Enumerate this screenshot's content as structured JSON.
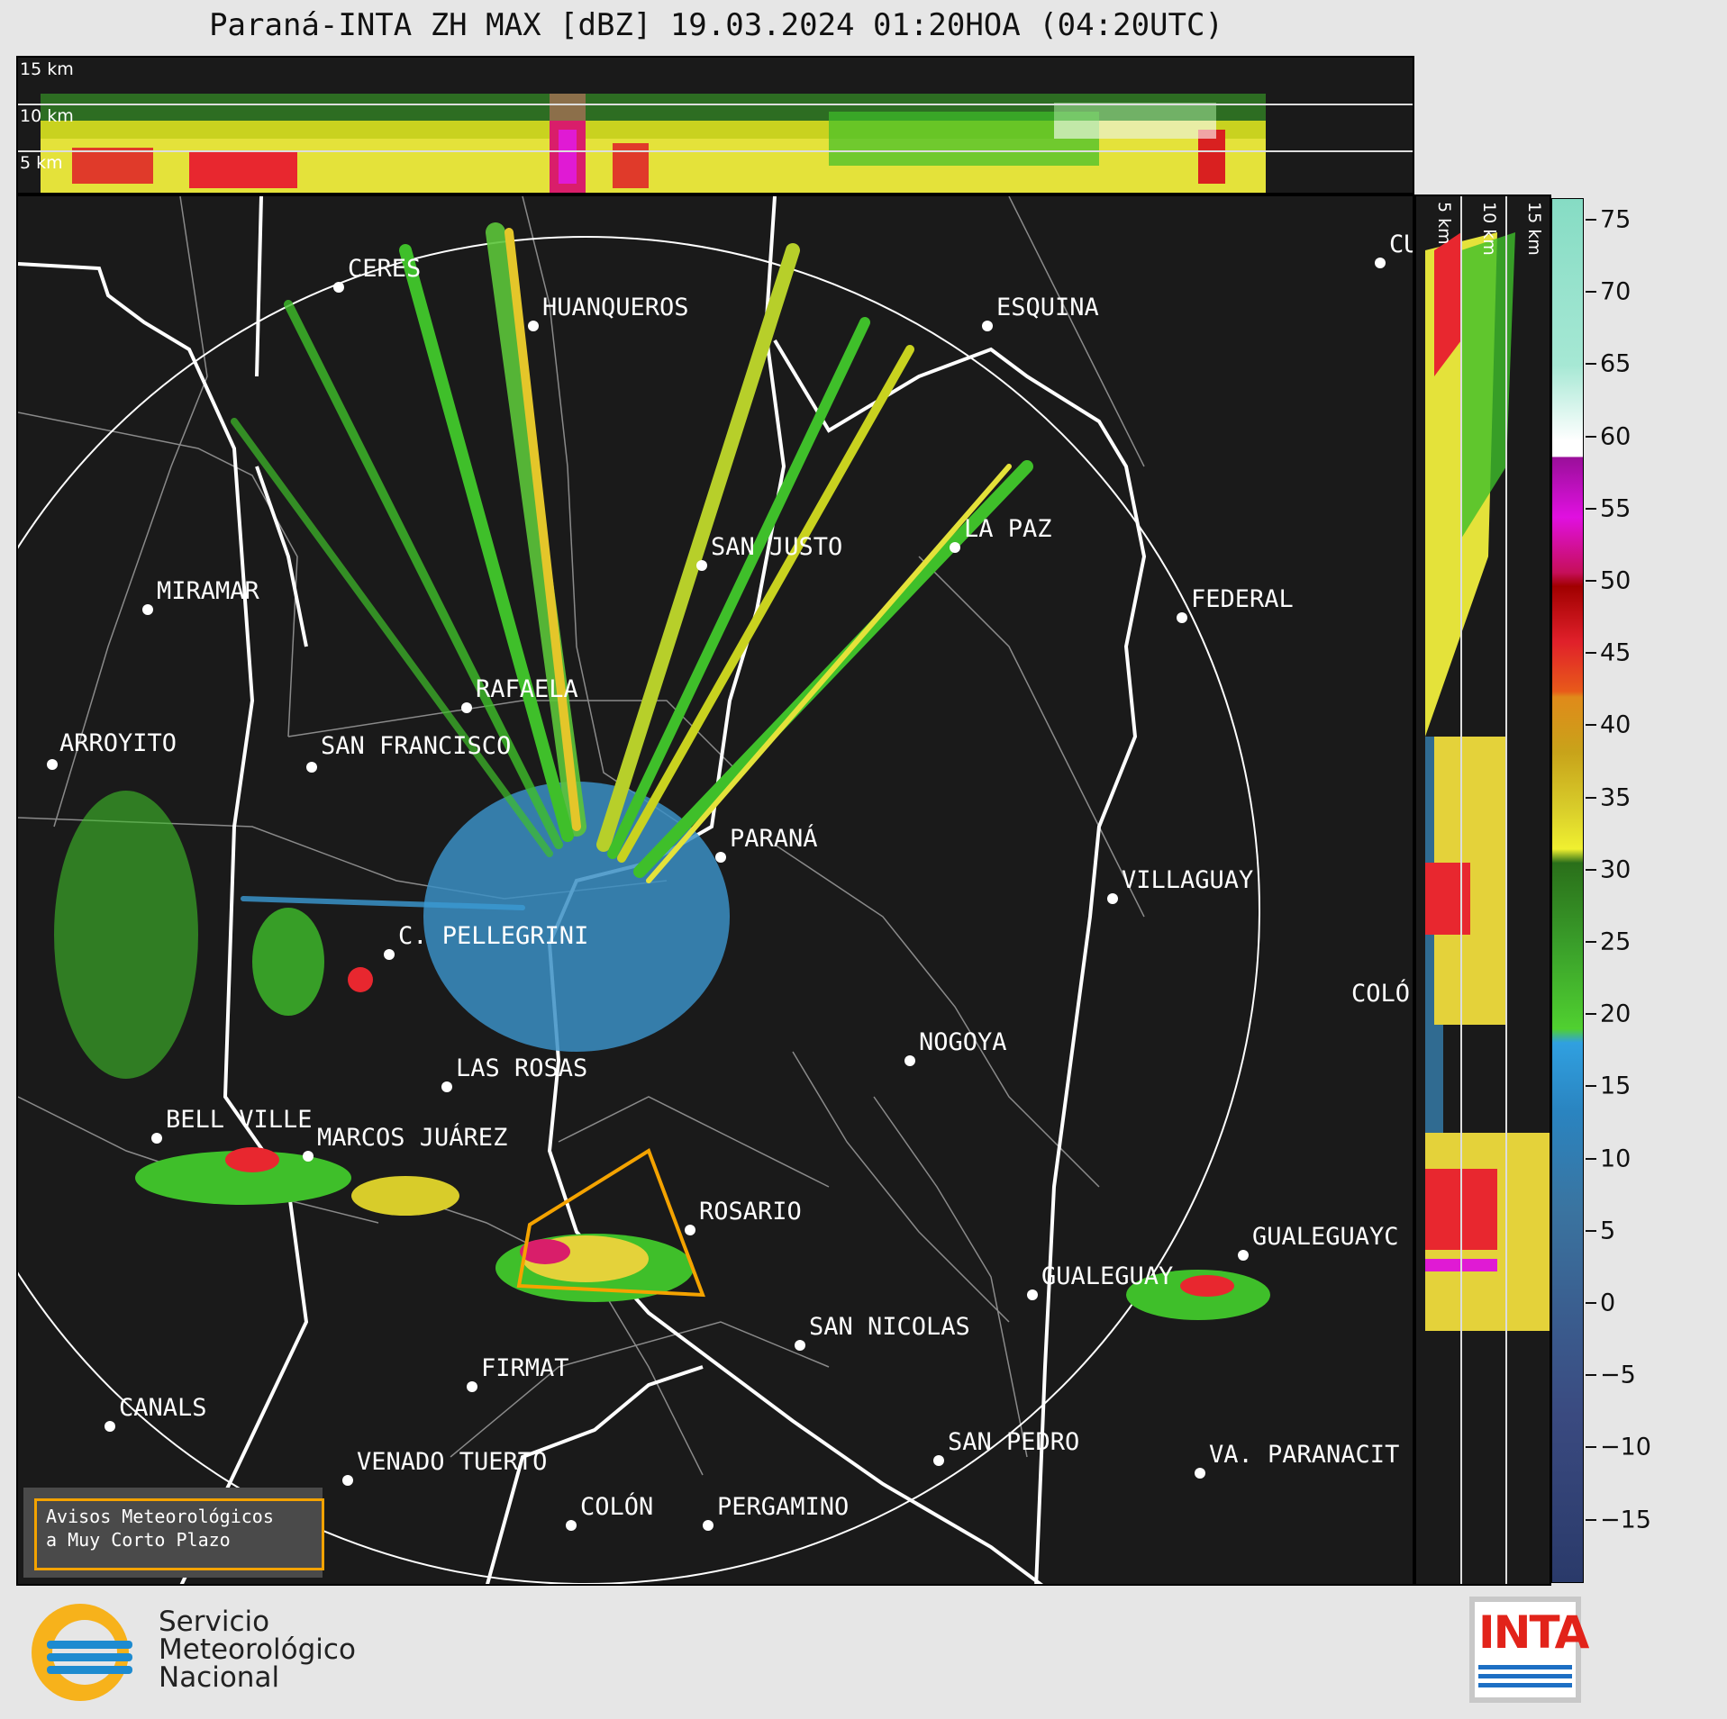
{
  "title": "Paraná-INTA ZH MAX [dBZ] 19.03.2024 01:20HOA (04:20UTC)",
  "top_panel": {
    "height_labels": [
      "15 km",
      "10 km",
      "5 km"
    ]
  },
  "side_panel": {
    "height_labels": [
      "5 km",
      "10 km",
      "15 km"
    ]
  },
  "colorbar": {
    "ticks": [
      "75",
      "70",
      "65",
      "60",
      "55",
      "50",
      "45",
      "40",
      "35",
      "30",
      "25",
      "20",
      "15",
      "10",
      "5",
      "0",
      "−5",
      "−10",
      "−15"
    ]
  },
  "cities": [
    {
      "name": "CERES",
      "id": "ceres"
    },
    {
      "name": "HUANQUEROS",
      "id": "huanqueros"
    },
    {
      "name": "ESQUINA",
      "id": "esquina"
    },
    {
      "name": "CU",
      "id": "cu"
    },
    {
      "name": "MIRAMAR",
      "id": "miramar"
    },
    {
      "name": "SAN JUSTO",
      "id": "san-justo"
    },
    {
      "name": "LA PAZ",
      "id": "la-paz"
    },
    {
      "name": "FEDERAL",
      "id": "federal"
    },
    {
      "name": "RAFAELA",
      "id": "rafaela"
    },
    {
      "name": "ARROYITO",
      "id": "arroyito"
    },
    {
      "name": "SAN FRANCISCO",
      "id": "san-francisco"
    },
    {
      "name": "PARANÁ",
      "id": "parana"
    },
    {
      "name": "VILLAGUAY",
      "id": "villaguay"
    },
    {
      "name": "C. PELLEGRINI",
      "id": "c-pellegrini"
    },
    {
      "name": "COLÓ",
      "id": "colon-er"
    },
    {
      "name": "NOGOYA",
      "id": "nogoya"
    },
    {
      "name": "LAS ROSAS",
      "id": "las-rosas"
    },
    {
      "name": "BELL VILLE",
      "id": "bell-ville"
    },
    {
      "name": "MARCOS JUÁREZ",
      "id": "marcos-juarez"
    },
    {
      "name": "ROSARIO",
      "id": "rosario"
    },
    {
      "name": "GUALEGUAYC",
      "id": "gualeguaychu"
    },
    {
      "name": "GUALEGUAY",
      "id": "gualeguay"
    },
    {
      "name": "SAN NICOLAS",
      "id": "san-nicolas"
    },
    {
      "name": "FIRMAT",
      "id": "firmat"
    },
    {
      "name": "CANALS",
      "id": "canals"
    },
    {
      "name": "SAN PEDRO",
      "id": "san-pedro"
    },
    {
      "name": "VA. PARANACIT",
      "id": "va-paranacito"
    },
    {
      "name": "VENADO TUERTO",
      "id": "venado-tuerto"
    },
    {
      "name": "COLÓN",
      "id": "colon-ba"
    },
    {
      "name": "PERGAMINO",
      "id": "pergamino"
    }
  ],
  "warning_box": {
    "line1": "Avisos Meteorológicos",
    "line2": "a Muy Corto Plazo"
  },
  "smn": {
    "line1": "Servicio",
    "line2": "Meteorológico",
    "line3": "Nacional"
  },
  "inta": {
    "text": "INTA"
  }
}
